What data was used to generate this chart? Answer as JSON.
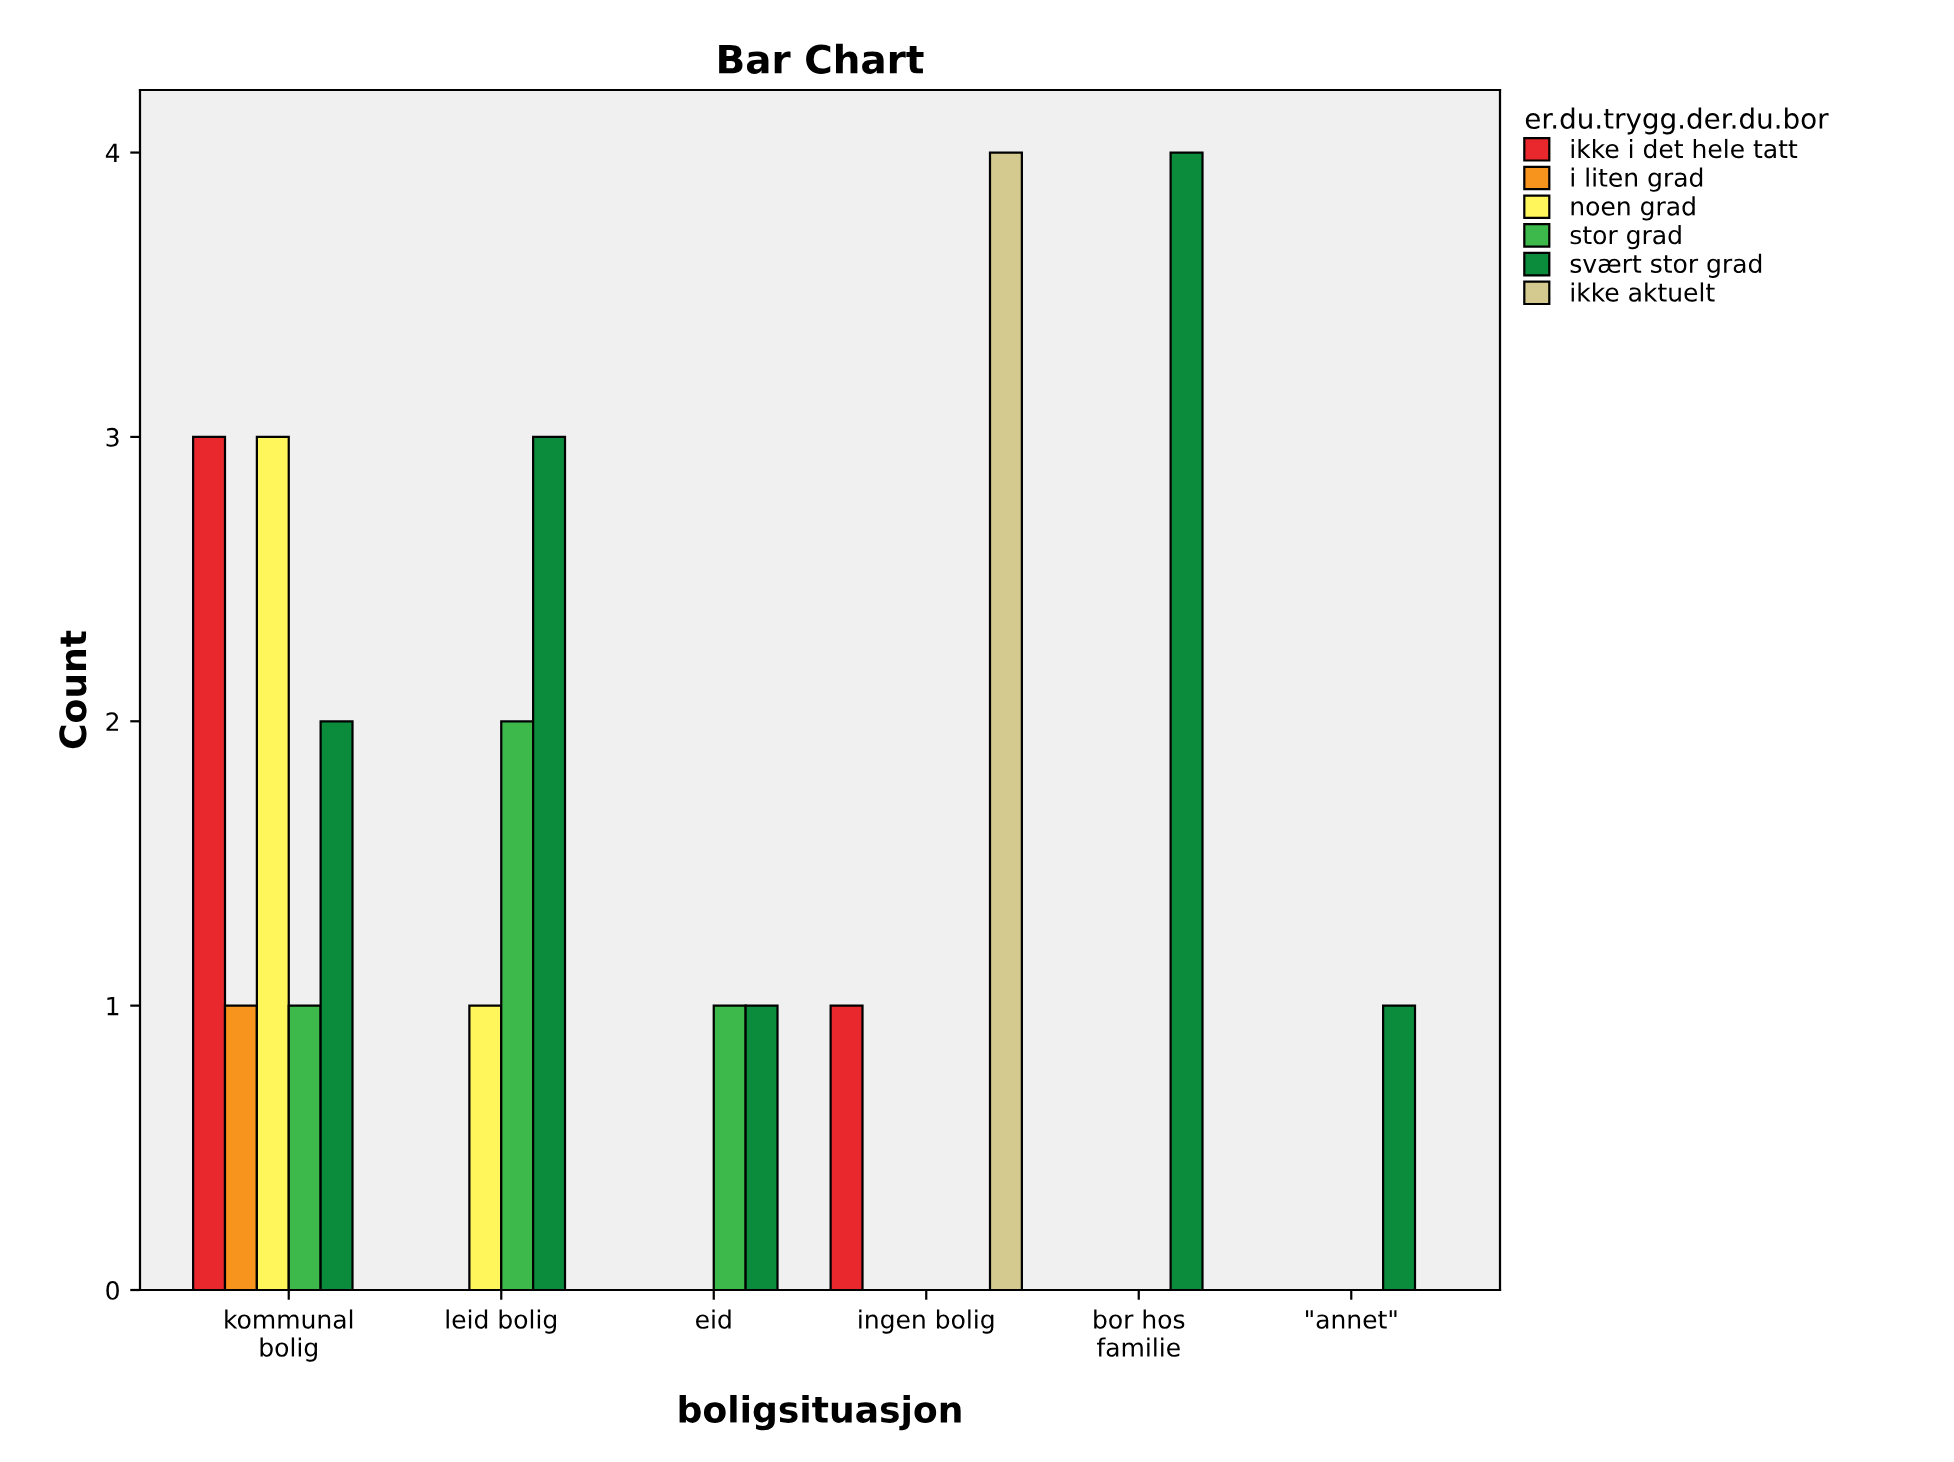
{
  "chart_data": {
    "type": "bar",
    "title": "Bar Chart",
    "xlabel": "boligsituasjon",
    "ylabel": "Count",
    "legend_title": "er.du.trygg.der.du.bor",
    "categories": [
      "kommunal\nbolig",
      "leid bolig",
      "eid",
      "ingen bolig",
      "bor hos\nfamilie",
      "\"annet\""
    ],
    "series": [
      {
        "name": "ikke i det hele tatt",
        "color": "#e8282d",
        "values": [
          3,
          null,
          null,
          1,
          null,
          null
        ]
      },
      {
        "name": "i liten grad",
        "color": "#f7941d",
        "values": [
          1,
          null,
          null,
          null,
          null,
          null
        ]
      },
      {
        "name": "noen grad",
        "color": "#fef65b",
        "values": [
          3,
          1,
          null,
          null,
          null,
          null
        ]
      },
      {
        "name": "stor grad",
        "color": "#3cb94a",
        "values": [
          1,
          2,
          1,
          null,
          null,
          null
        ]
      },
      {
        "name": "svært stor grad",
        "color": "#0b8c3c",
        "values": [
          2,
          3,
          1,
          null,
          4,
          1
        ]
      },
      {
        "name": "ikke aktuelt",
        "color": "#d4c98e",
        "values": [
          null,
          null,
          null,
          4,
          null,
          null
        ]
      }
    ],
    "ylim": [
      0,
      4.22
    ],
    "yticks": [
      0,
      1,
      2,
      3,
      4
    ],
    "grid": false,
    "legend": "top right"
  }
}
